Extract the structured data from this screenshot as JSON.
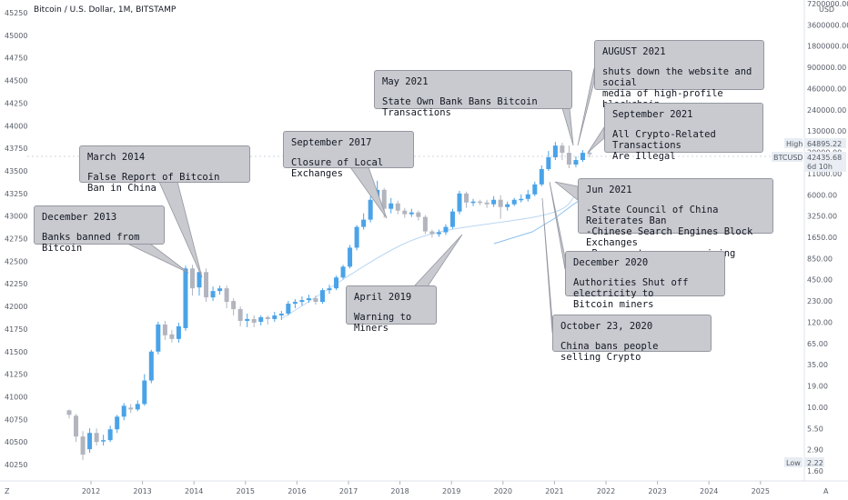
{
  "header": {
    "title": "Bitcoin / U.S. Dollar, 1M, BITSTAMP",
    "currency": "USD"
  },
  "chart_data": {
    "type": "candlestick",
    "title": "Bitcoin / U.S. Dollar, 1M, BITSTAMP",
    "x_ticks": [
      "2012",
      "2013",
      "2014",
      "2015",
      "2016",
      "2017",
      "2018",
      "2019",
      "2020",
      "2021",
      "2022",
      "2023",
      "2024",
      "2025"
    ],
    "left_axis_ticks": [
      "45250",
      "45000",
      "44750",
      "44500",
      "44250",
      "44000",
      "43750",
      "43500",
      "43250",
      "43000",
      "42750",
      "42500",
      "42250",
      "42000",
      "41750",
      "41500",
      "41250",
      "41000",
      "40750",
      "40500",
      "40250"
    ],
    "right_axis_ticks": [
      "7200000.00",
      "3600000.00",
      "1800000.00",
      "900000.00",
      "460000.00",
      "240000.00",
      "130000.00",
      "20000.00",
      "11000.00",
      "6000.00",
      "3250.00",
      "1650.00",
      "850.00",
      "450.00",
      "230.00",
      "120.00",
      "65.00",
      "35.00",
      "19.00",
      "10.00",
      "5.50",
      "2.90",
      "1.60"
    ],
    "price_labels": {
      "high_label": "High",
      "high_value": "64895.22",
      "symbol": "BTCUSD",
      "current_value": "42435.68",
      "countdown": "6d 10h",
      "low_label": "Low",
      "low_value": "2.22"
    },
    "candles_left_scale": [
      [
        40850,
        40800,
        40860,
        40760
      ],
      [
        40790,
        40560,
        40810,
        40500
      ],
      [
        40560,
        40360,
        40620,
        40300
      ],
      [
        40420,
        40600,
        40650,
        40380
      ],
      [
        40600,
        40500,
        40650,
        40460
      ],
      [
        40520,
        40520,
        40580,
        40460
      ],
      [
        40520,
        40640,
        40680,
        40500
      ],
      [
        40640,
        40780,
        40800,
        40600
      ],
      [
        40780,
        40900,
        40930,
        40740
      ],
      [
        40880,
        40860,
        40920,
        40820
      ],
      [
        40860,
        40920,
        40960,
        40840
      ],
      [
        40920,
        41180,
        41250,
        40900
      ],
      [
        41180,
        41500,
        41520,
        41150
      ],
      [
        41500,
        41800,
        41830,
        41470
      ],
      [
        41800,
        41680,
        41840,
        41630
      ],
      [
        41690,
        41640,
        41740,
        41600
      ],
      [
        41640,
        41780,
        41820,
        41600
      ],
      [
        41760,
        42420,
        42450,
        41730
      ],
      [
        42420,
        42200,
        42460,
        42120
      ],
      [
        42210,
        42380,
        42400,
        42120
      ],
      [
        42380,
        42100,
        42420,
        42050
      ],
      [
        42100,
        42170,
        42220,
        42060
      ],
      [
        42170,
        42200,
        42230,
        42130
      ],
      [
        42200,
        42050,
        42230,
        41980
      ],
      [
        42060,
        41970,
        42090,
        41900
      ],
      [
        41970,
        41840,
        42000,
        41780
      ],
      [
        41840,
        41860,
        41920,
        41770
      ],
      [
        41860,
        41820,
        41900,
        41770
      ],
      [
        41830,
        41880,
        41900,
        41790
      ],
      [
        41880,
        41860,
        41900,
        41800
      ],
      [
        41860,
        41900,
        41940,
        41830
      ],
      [
        41900,
        41920,
        41950,
        41850
      ],
      [
        41920,
        42030,
        42060,
        41900
      ],
      [
        42030,
        42050,
        42080,
        41980
      ],
      [
        42050,
        42070,
        42110,
        42010
      ],
      [
        42070,
        42090,
        42130,
        42040
      ],
      [
        42090,
        42050,
        42120,
        42020
      ],
      [
        42050,
        42180,
        42200,
        42030
      ],
      [
        42180,
        42200,
        42240,
        42140
      ],
      [
        42200,
        42320,
        42340,
        42180
      ],
      [
        42320,
        42440,
        42460,
        42300
      ],
      [
        42440,
        42650,
        42680,
        42420
      ],
      [
        42650,
        42880,
        42900,
        42620
      ],
      [
        42880,
        42960,
        43030,
        42850
      ],
      [
        42960,
        43180,
        43220,
        42930
      ],
      [
        43180,
        43290,
        43390,
        43150
      ],
      [
        43290,
        43080,
        43310,
        42980
      ],
      [
        43080,
        43140,
        43200,
        43030
      ],
      [
        43140,
        43060,
        43170,
        43020
      ],
      [
        43060,
        43020,
        43090,
        42980
      ],
      [
        43020,
        43040,
        43080,
        42990
      ],
      [
        43040,
        42990,
        43060,
        42950
      ],
      [
        42990,
        42830,
        43010,
        42800
      ],
      [
        42830,
        42800,
        42850,
        42760
      ],
      [
        42800,
        42820,
        42850,
        42770
      ],
      [
        42820,
        42880,
        42910,
        42790
      ],
      [
        42880,
        43050,
        43080,
        42860
      ],
      [
        43050,
        43250,
        43280,
        43020
      ],
      [
        43250,
        43150,
        43270,
        43090
      ],
      [
        43150,
        43160,
        43190,
        43110
      ],
      [
        43160,
        43150,
        43180,
        43120
      ],
      [
        43150,
        43130,
        43180,
        43090
      ],
      [
        43130,
        43180,
        43220,
        43100
      ],
      [
        43180,
        43100,
        43230,
        42970
      ],
      [
        43100,
        43130,
        43160,
        43060
      ],
      [
        43130,
        43180,
        43200,
        43110
      ],
      [
        43180,
        43190,
        43240,
        43150
      ],
      [
        43190,
        43240,
        43290,
        43160
      ],
      [
        43240,
        43350,
        43380,
        43220
      ],
      [
        43350,
        43520,
        43560,
        43330
      ],
      [
        43520,
        43650,
        43720,
        43500
      ],
      [
        43650,
        43780,
        43820,
        43620
      ],
      [
        43780,
        43700,
        43810,
        43620
      ],
      [
        43700,
        43570,
        43780,
        43530
      ],
      [
        43570,
        43620,
        43660,
        43540
      ],
      [
        43620,
        43700,
        43730,
        43600
      ],
      [
        43700,
        43690,
        43720,
        43650
      ]
    ],
    "annotations": [
      {
        "title": "December 2013",
        "body": "Banks banned from Bitcoin"
      },
      {
        "title": "March 2014",
        "body": "False Report of Bitcoin Ban in China"
      },
      {
        "title": "September 2017",
        "body": "Closure of Local Exchanges"
      },
      {
        "title": "May 2021",
        "body": "State Own Bank Bans Bitcoin Transactions"
      },
      {
        "title": "AUGUST 2021",
        "body": "shuts down the website and social\nmedia of high-profile blockchain"
      },
      {
        "title": "September 2021",
        "body": "All Crypto-Related Transactions\nAre Illegal"
      },
      {
        "title": "Jun 2021",
        "body": "-State Council of China Reiterates Ban\n-Chinese Search Engines Block Exchanges\n-Ban cryptocurrency mining"
      },
      {
        "title": "April 2019",
        "body": "Warning to Miners"
      },
      {
        "title": "December 2020",
        "body": "Authorities Shut off electricity to\nBitcoin miners"
      },
      {
        "title": "October 23, 2020",
        "body": "China bans people selling Crypto"
      }
    ],
    "colors": {
      "up": "#4aa3e8",
      "down": "#b2b5be",
      "line": "#c9dcf2",
      "box": "#c8cacf"
    },
    "corner_labels": {
      "left": "Z",
      "right": "A"
    }
  }
}
